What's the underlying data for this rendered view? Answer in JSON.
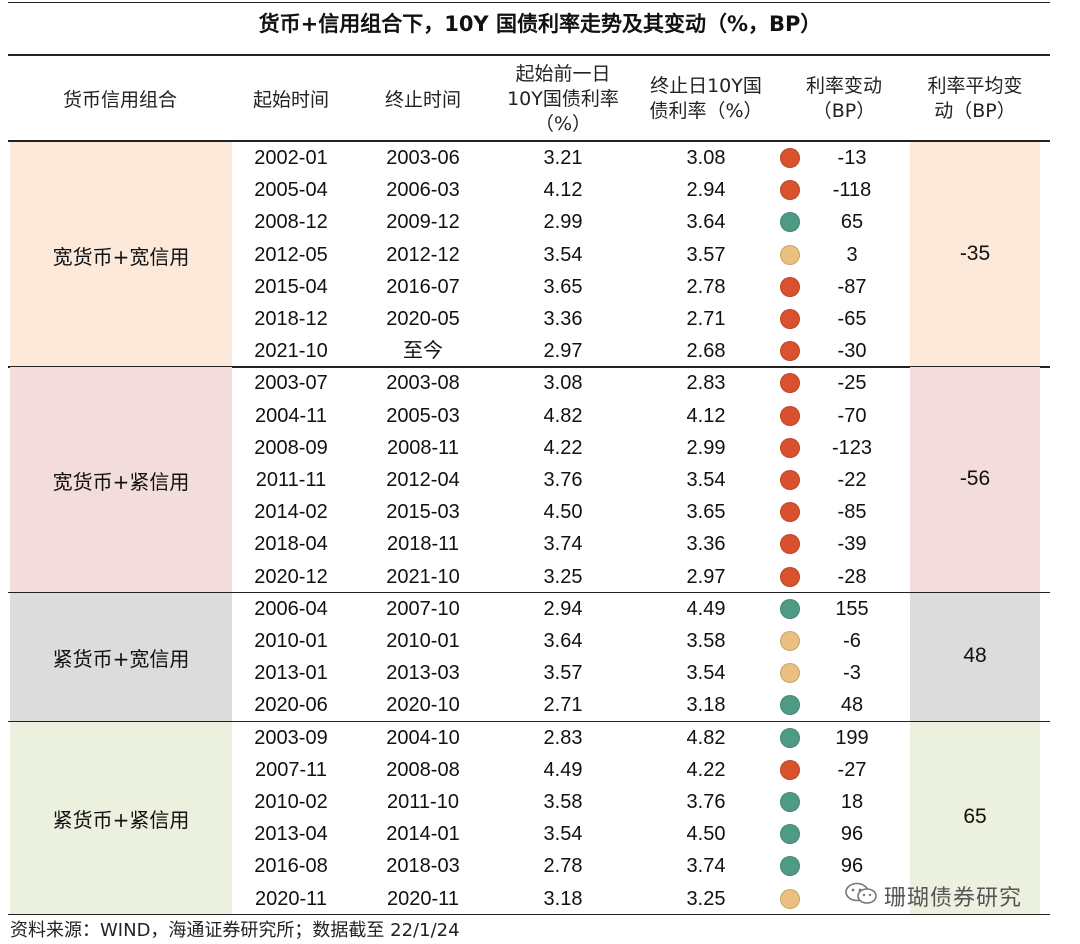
{
  "title": "货币+信用组合下，10Y 国债利率走势及其变动（%，BP）",
  "headers": {
    "combo": "货币信用组合",
    "start": "起始时间",
    "end": "终止时间",
    "prev_rate": [
      "起始前一日",
      "10Y国债利率",
      "（%）"
    ],
    "end_rate": [
      "终止日10Y国",
      "债利率（%）"
    ],
    "change": [
      "利率变动",
      "（BP）"
    ],
    "avg_change": [
      "利率平均变",
      "动（BP）"
    ]
  },
  "colors": {
    "red": "#d9512d",
    "green": "#4f9a84",
    "yellow": "#e9c07f"
  },
  "groups": [
    {
      "label": "宽货币+宽信用",
      "avg": "-35",
      "bg": "#fde9da",
      "rows": [
        {
          "start": "2002-01",
          "end": "2003-06",
          "prev": "3.21",
          "final": "3.08",
          "dot": "red",
          "change": "-13"
        },
        {
          "start": "2005-04",
          "end": "2006-03",
          "prev": "4.12",
          "final": "2.94",
          "dot": "red",
          "change": "-118"
        },
        {
          "start": "2008-12",
          "end": "2009-12",
          "prev": "2.99",
          "final": "3.64",
          "dot": "green",
          "change": "65"
        },
        {
          "start": "2012-05",
          "end": "2012-12",
          "prev": "3.54",
          "final": "3.57",
          "dot": "yellow",
          "change": "3"
        },
        {
          "start": "2015-04",
          "end": "2016-07",
          "prev": "3.65",
          "final": "2.78",
          "dot": "red",
          "change": "-87"
        },
        {
          "start": "2018-12",
          "end": "2020-05",
          "prev": "3.36",
          "final": "2.71",
          "dot": "red",
          "change": "-65"
        },
        {
          "start": "2021-10",
          "end": "至今",
          "prev": "2.97",
          "final": "2.68",
          "dot": "red",
          "change": "-30"
        }
      ]
    },
    {
      "label": "宽货币+紧信用",
      "avg": "-56",
      "bg": "#f3dcdc",
      "rows": [
        {
          "start": "2003-07",
          "end": "2003-08",
          "prev": "3.08",
          "final": "2.83",
          "dot": "red",
          "change": "-25"
        },
        {
          "start": "2004-11",
          "end": "2005-03",
          "prev": "4.82",
          "final": "4.12",
          "dot": "red",
          "change": "-70"
        },
        {
          "start": "2008-09",
          "end": "2008-11",
          "prev": "4.22",
          "final": "2.99",
          "dot": "red",
          "change": "-123"
        },
        {
          "start": "2011-11",
          "end": "2012-04",
          "prev": "3.76",
          "final": "3.54",
          "dot": "red",
          "change": "-22"
        },
        {
          "start": "2014-02",
          "end": "2015-03",
          "prev": "4.50",
          "final": "3.65",
          "dot": "red",
          "change": "-85"
        },
        {
          "start": "2018-04",
          "end": "2018-11",
          "prev": "3.74",
          "final": "3.36",
          "dot": "red",
          "change": "-39"
        },
        {
          "start": "2020-12",
          "end": "2021-10",
          "prev": "3.25",
          "final": "2.97",
          "dot": "red",
          "change": "-28"
        }
      ]
    },
    {
      "label": "紧货币+宽信用",
      "avg": "48",
      "bg": "#dcdcdc",
      "rows": [
        {
          "start": "2006-04",
          "end": "2007-10",
          "prev": "2.94",
          "final": "4.49",
          "dot": "green",
          "change": "155"
        },
        {
          "start": "2010-01",
          "end": "2010-01",
          "prev": "3.64",
          "final": "3.58",
          "dot": "yellow",
          "change": "-6"
        },
        {
          "start": "2013-01",
          "end": "2013-03",
          "prev": "3.57",
          "final": "3.54",
          "dot": "yellow",
          "change": "-3"
        },
        {
          "start": "2020-06",
          "end": "2020-10",
          "prev": "2.71",
          "final": "3.18",
          "dot": "green",
          "change": "48"
        }
      ]
    },
    {
      "label": "紧货币+紧信用",
      "avg": "65",
      "bg": "#ebf1de",
      "rows": [
        {
          "start": "2003-09",
          "end": "2004-10",
          "prev": "2.83",
          "final": "4.82",
          "dot": "green",
          "change": "199"
        },
        {
          "start": "2007-11",
          "end": "2008-08",
          "prev": "4.49",
          "final": "4.22",
          "dot": "red",
          "change": "-27"
        },
        {
          "start": "2010-02",
          "end": "2011-10",
          "prev": "3.58",
          "final": "3.76",
          "dot": "green",
          "change": "18"
        },
        {
          "start": "2013-04",
          "end": "2014-01",
          "prev": "3.54",
          "final": "4.50",
          "dot": "green",
          "change": "96"
        },
        {
          "start": "2016-08",
          "end": "2018-03",
          "prev": "2.78",
          "final": "3.74",
          "dot": "green",
          "change": "96"
        },
        {
          "start": "2020-11",
          "end": "2020-11",
          "prev": "3.18",
          "final": "3.25",
          "dot": "yellow",
          "change": ""
        }
      ]
    }
  ],
  "source": "资料来源：WIND，海通证券研究所；数据截至 22/1/24",
  "watermark": "珊瑚债券研究"
}
